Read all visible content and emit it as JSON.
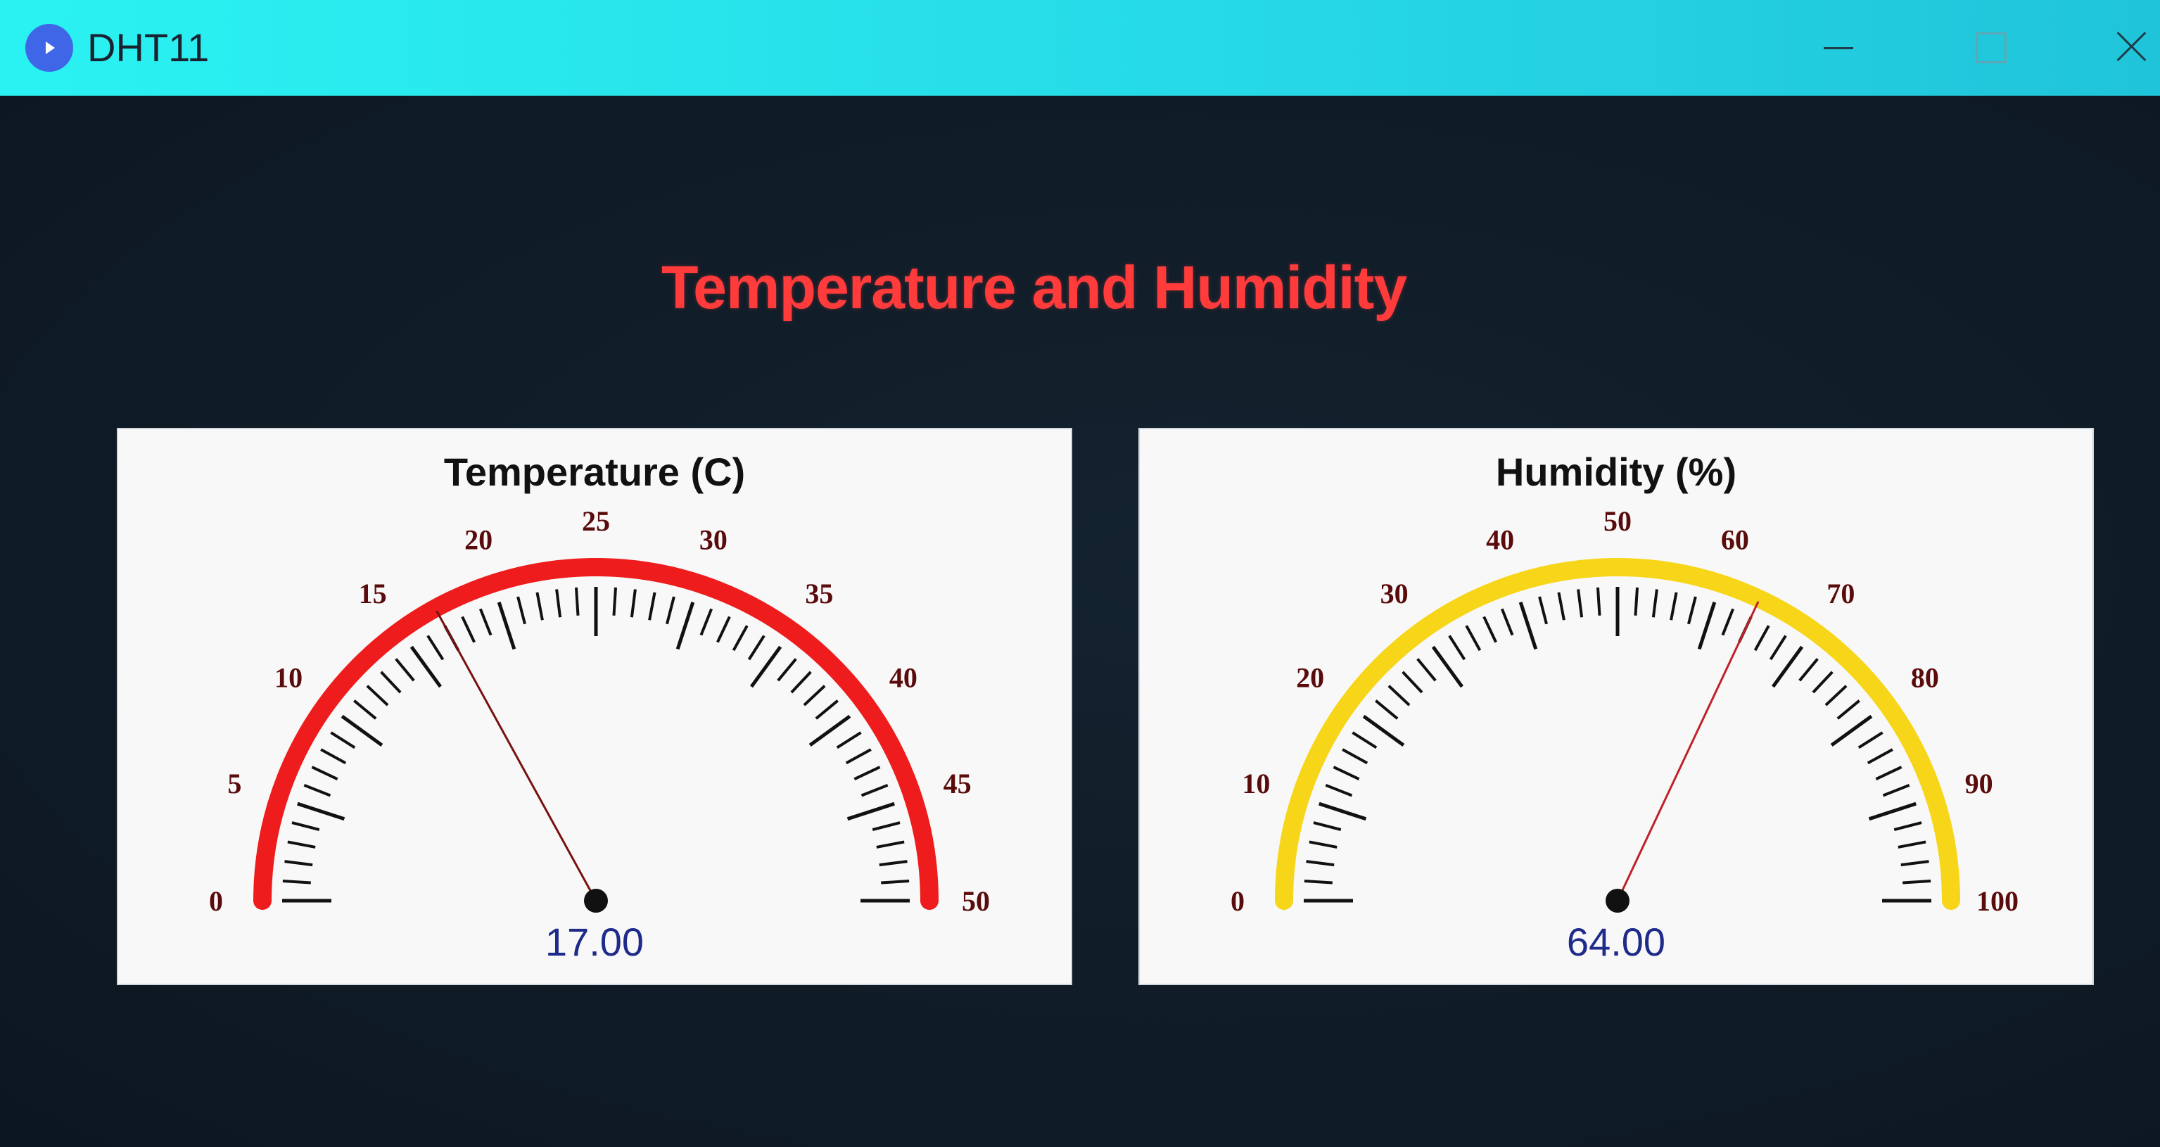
{
  "window": {
    "title": "DHT11",
    "icon": "play-circle-icon",
    "controls": [
      "minimize-icon",
      "maximize-icon",
      "close-icon"
    ]
  },
  "heading": "Temperature and Humidity",
  "gauges": [
    {
      "title": "Temperature (C)",
      "value": 17,
      "readout": "17.00",
      "min": 0,
      "max": 50,
      "major_labels": [
        "0",
        "5",
        "10",
        "15",
        "20",
        "25",
        "30",
        "35",
        "40",
        "45",
        "50"
      ],
      "arc_color": "#ee1c1c",
      "needle_color": "#7a1010"
    },
    {
      "title": "Humidity (%)",
      "value": 64,
      "readout": "64.00",
      "min": 0,
      "max": 100,
      "major_labels": [
        "0",
        "10",
        "20",
        "30",
        "40",
        "50",
        "60",
        "70",
        "80",
        "90",
        "100"
      ],
      "arc_color": "#f7d61a",
      "needle_color": "#c0202a"
    }
  ],
  "colors": {
    "heading": "#ff3b3b",
    "titlebar": "#26d8e6",
    "background": "#0f1c27",
    "readout": "#1f2b8a",
    "label": "#5a0b0b"
  }
}
